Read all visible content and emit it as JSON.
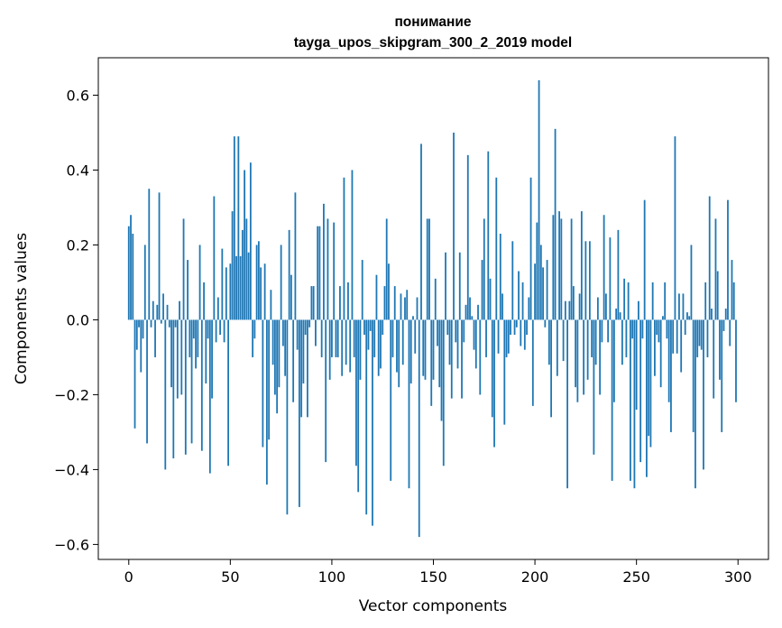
{
  "chart_data": {
    "type": "bar",
    "title_line1": "понимание",
    "title_line2": "tayga_upos_skipgram_300_2_2019 model",
    "xlabel": "Vector components",
    "ylabel": "Components values",
    "xlim": [
      -15,
      315
    ],
    "ylim": [
      -0.64,
      0.7
    ],
    "x_ticks": [
      0,
      50,
      100,
      150,
      200,
      250,
      300
    ],
    "x_tick_labels": [
      "0",
      "50",
      "100",
      "150",
      "200",
      "250",
      "300"
    ],
    "y_ticks": [
      -0.6,
      -0.4,
      -0.2,
      0.0,
      0.2,
      0.4,
      0.6
    ],
    "y_tick_labels": [
      "−0.6",
      "−0.4",
      "−0.2",
      "0.0",
      "0.2",
      "0.4",
      "0.6"
    ],
    "bar_color": "#1f77b4",
    "grid": false,
    "x": "indices 0..299",
    "values": [
      0.25,
      0.28,
      0.23,
      -0.29,
      -0.08,
      -0.02,
      -0.14,
      -0.05,
      0.2,
      -0.33,
      0.35,
      -0.02,
      0.05,
      -0.1,
      0.04,
      0.34,
      -0.01,
      0.07,
      -0.4,
      0.04,
      -0.02,
      -0.18,
      -0.37,
      -0.02,
      -0.21,
      0.05,
      -0.2,
      0.27,
      -0.36,
      0.16,
      -0.1,
      -0.33,
      -0.05,
      -0.13,
      -0.1,
      0.2,
      -0.35,
      0.1,
      -0.17,
      -0.05,
      -0.41,
      -0.21,
      0.33,
      -0.06,
      0.06,
      -0.04,
      0.19,
      -0.06,
      0.14,
      -0.39,
      0.15,
      0.29,
      0.49,
      0.17,
      0.49,
      0.17,
      0.24,
      0.4,
      0.27,
      0.18,
      0.42,
      -0.1,
      -0.05,
      0.2,
      0.21,
      0.14,
      -0.34,
      0.15,
      -0.44,
      -0.32,
      0.08,
      -0.12,
      -0.2,
      -0.25,
      -0.18,
      0.2,
      -0.07,
      -0.15,
      -0.52,
      0.24,
      0.12,
      -0.22,
      0.34,
      -0.08,
      -0.5,
      -0.26,
      -0.17,
      -0.04,
      -0.26,
      -0.02,
      0.09,
      0.09,
      -0.07,
      0.25,
      0.25,
      -0.1,
      0.31,
      -0.38,
      0.27,
      -0.16,
      -0.1,
      0.26,
      -0.1,
      -0.1,
      0.09,
      -0.15,
      0.38,
      -0.12,
      0.1,
      -0.14,
      0.4,
      -0.1,
      -0.39,
      -0.46,
      -0.16,
      0.16,
      -0.04,
      -0.52,
      -0.08,
      -0.03,
      -0.55,
      -0.1,
      0.12,
      -0.15,
      -0.13,
      -0.04,
      0.09,
      0.27,
      0.15,
      -0.43,
      -0.1,
      0.09,
      -0.14,
      -0.18,
      0.07,
      -0.12,
      0.06,
      0.08,
      -0.45,
      -0.17,
      0.01,
      -0.09,
      0.06,
      -0.58,
      0.47,
      -0.15,
      -0.16,
      0.27,
      0.27,
      -0.23,
      -0.16,
      0.11,
      -0.07,
      -0.18,
      -0.27,
      -0.39,
      0.18,
      -0.04,
      -0.12,
      -0.21,
      0.5,
      -0.06,
      -0.13,
      0.18,
      -0.21,
      -0.06,
      0.04,
      0.44,
      0.06,
      0.01,
      -0.08,
      -0.13,
      0.04,
      -0.2,
      0.16,
      0.27,
      -0.1,
      0.45,
      0.11,
      -0.26,
      -0.34,
      0.38,
      -0.09,
      0.23,
      0.07,
      -0.28,
      -0.1,
      -0.09,
      -0.04,
      0.21,
      -0.04,
      -0.02,
      0.13,
      -0.07,
      0.1,
      -0.08,
      -0.04,
      0.06,
      0.38,
      -0.23,
      0.15,
      0.26,
      0.64,
      0.2,
      0.14,
      -0.02,
      0.16,
      -0.12,
      -0.26,
      0.28,
      0.51,
      -0.15,
      0.29,
      0.27,
      -0.11,
      0.05,
      -0.45,
      0.05,
      0.27,
      0.09,
      -0.18,
      -0.22,
      0.07,
      0.29,
      -0.2,
      0.21,
      -0.16,
      0.21,
      -0.1,
      -0.36,
      -0.12,
      0.06,
      -0.2,
      -0.06,
      0.28,
      0.07,
      -0.06,
      0.22,
      -0.43,
      -0.22,
      0.03,
      0.24,
      0.02,
      -0.12,
      0.11,
      -0.1,
      0.1,
      -0.43,
      -0.05,
      -0.45,
      -0.24,
      0.05,
      -0.38,
      -0.05,
      0.32,
      -0.42,
      -0.31,
      -0.34,
      0.1,
      -0.15,
      -0.04,
      -0.06,
      -0.18,
      0.01,
      0.1,
      -0.05,
      -0.22,
      -0.3,
      -0.09,
      0.49,
      -0.09,
      0.07,
      -0.14,
      0.07,
      -0.04,
      0.02,
      0.01,
      0.2,
      -0.3,
      -0.45,
      -0.1,
      -0.07,
      -0.08,
      -0.4,
      0.1,
      -0.1,
      0.33,
      0.03,
      -0.21,
      0.27,
      0.13,
      -0.16,
      -0.3,
      -0.03,
      0.03,
      0.32,
      -0.07,
      0.16,
      0.1,
      -0.22
    ]
  }
}
